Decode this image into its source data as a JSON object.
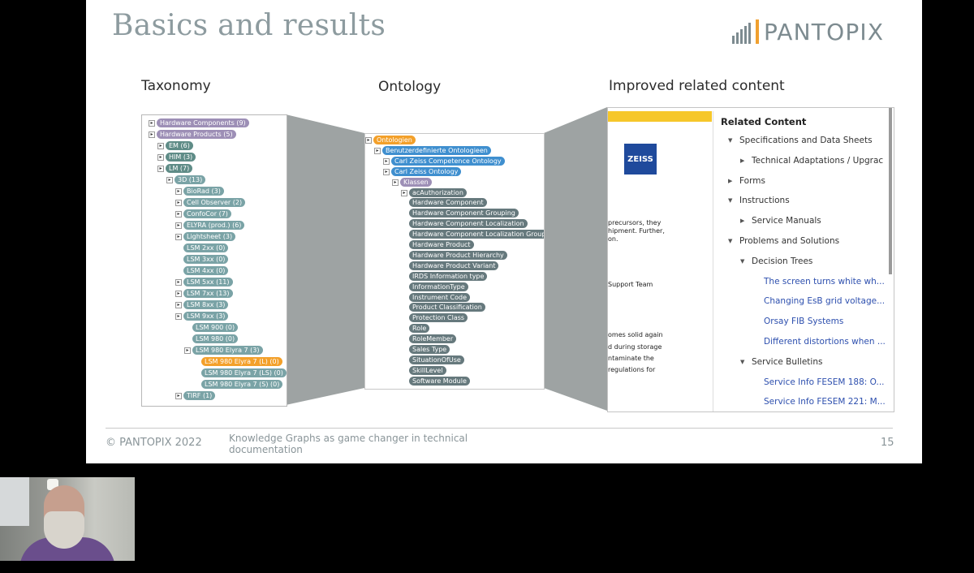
{
  "slide": {
    "title": "Basics and results",
    "logo_text": "PANTOPIX",
    "sections": {
      "taxonomy": "Taxonomy",
      "ontology": "Ontology",
      "related": "Improved related content"
    },
    "footer": {
      "copyright": "© PANTOPIX 2022",
      "subtitle": "Knowledge Graphs as game changer in technical documentation",
      "page": "15"
    }
  },
  "taxonomy_tree": [
    {
      "label": "Hardware Components (9)",
      "color": "#9d8fb6"
    },
    {
      "label": "Hardware Products (5)",
      "color": "#9d8fb6"
    },
    {
      "label": "EM (6)",
      "color": "#5f8c87"
    },
    {
      "label": "HIM (3)",
      "color": "#5f8c87"
    },
    {
      "label": "LM (7)",
      "color": "#5f8c87"
    },
    {
      "label": "3D (13)",
      "color": "#7aa3a6"
    },
    {
      "label": "BioRad (3)",
      "color": "#7aa3a6"
    },
    {
      "label": "Cell Observer (2)",
      "color": "#7aa3a6"
    },
    {
      "label": "ConfoCor (7)",
      "color": "#7aa3a6"
    },
    {
      "label": "ELYRA (prod.) (6)",
      "color": "#7aa3a6"
    },
    {
      "label": "Lightsheet (3)",
      "color": "#7aa3a6"
    },
    {
      "label": "LSM 2xx (0)",
      "color": "#7aa3a6"
    },
    {
      "label": "LSM 3xx (0)",
      "color": "#7aa3a6"
    },
    {
      "label": "LSM 4xx (0)",
      "color": "#7aa3a6"
    },
    {
      "label": "LSM 5xx (11)",
      "color": "#7aa3a6"
    },
    {
      "label": "LSM 7xx (13)",
      "color": "#7aa3a6"
    },
    {
      "label": "LSM 8xx (3)",
      "color": "#7aa3a6"
    },
    {
      "label": "LSM 9xx (3)",
      "color": "#7aa3a6"
    },
    {
      "label": "LSM 900 (0)",
      "color": "#7aa3a6"
    },
    {
      "label": "LSM 980 (0)",
      "color": "#7aa3a6"
    },
    {
      "label": "LSM 980 Elyra 7 (3)",
      "color": "#7aa3a6"
    },
    {
      "label": "LSM 980 Elyra 7 (L) (0)",
      "color": "#f3a02a"
    },
    {
      "label": "LSM 980 Elyra 7 (LS) (0)",
      "color": "#7aa3a6"
    },
    {
      "label": "LSM 980 Elyra 7 (S) (0)",
      "color": "#7aa3a6"
    },
    {
      "label": "TIRF (1)",
      "color": "#7aa3a6"
    }
  ],
  "ontology_tree": [
    {
      "label": "Ontologien",
      "color": "#f3a02a"
    },
    {
      "label": "Benutzerdefinierte Ontologieen",
      "color": "#3f8fcf"
    },
    {
      "label": "Carl Zeiss Competence Ontology",
      "color": "#3f8fcf"
    },
    {
      "label": "Carl Zeiss Ontology",
      "color": "#3f8fcf"
    },
    {
      "label": "Klassen",
      "color": "#9d8fb6"
    },
    {
      "label": "acAuthorization",
      "color": "#66797d"
    },
    {
      "label": "Hardware Component",
      "color": "#66797d"
    },
    {
      "label": "Hardware Component Grouping",
      "color": "#66797d"
    },
    {
      "label": "Hardware Component Localization",
      "color": "#66797d"
    },
    {
      "label": "Hardware Component Localization Grouping",
      "color": "#66797d"
    },
    {
      "label": "Hardware Product",
      "color": "#66797d"
    },
    {
      "label": "Hardware Product Hierarchy",
      "color": "#66797d"
    },
    {
      "label": "Hardware Product Variant",
      "color": "#66797d"
    },
    {
      "label": "IRDS Information type",
      "color": "#66797d"
    },
    {
      "label": "InformationType",
      "color": "#66797d"
    },
    {
      "label": "Instrument Code",
      "color": "#66797d"
    },
    {
      "label": "Product Classification",
      "color": "#66797d"
    },
    {
      "label": "Protection Class",
      "color": "#66797d"
    },
    {
      "label": "Role",
      "color": "#66797d"
    },
    {
      "label": "RoleMember",
      "color": "#66797d"
    },
    {
      "label": "Sales Type",
      "color": "#66797d"
    },
    {
      "label": "SituationOfUse",
      "color": "#66797d"
    },
    {
      "label": "SkillLevel",
      "color": "#66797d"
    },
    {
      "label": "Software Module",
      "color": "#66797d"
    }
  ],
  "related_content": {
    "logo": "ZEISS",
    "doc_snippets": [
      "precursors, they",
      "hipment. Further,",
      "on.",
      "Support Team",
      "omes solid again",
      "d during storage",
      "ntaminate the",
      "regulations for"
    ],
    "title": "Related Content",
    "items": [
      {
        "label": "Specifications and Data Sheets",
        "kind": "item"
      },
      {
        "label": "Technical Adaptations / Upgrac",
        "kind": "item"
      },
      {
        "label": "Forms",
        "kind": "item"
      },
      {
        "label": "Instructions",
        "kind": "item"
      },
      {
        "label": "Service Manuals",
        "kind": "item"
      },
      {
        "label": "Problems and Solutions",
        "kind": "item"
      },
      {
        "label": "Decision Trees",
        "kind": "item"
      },
      {
        "label": "The screen turns white wh...",
        "kind": "link"
      },
      {
        "label": "Changing EsB grid voltage...",
        "kind": "link"
      },
      {
        "label": "Orsay FIB Systems",
        "kind": "link"
      },
      {
        "label": "Different distortions when ...",
        "kind": "link"
      },
      {
        "label": "Service Bulletins",
        "kind": "item"
      },
      {
        "label": "Service Info FESEM 188: O...",
        "kind": "link"
      },
      {
        "label": "Service Info FESEM 221: M...",
        "kind": "link"
      }
    ]
  }
}
